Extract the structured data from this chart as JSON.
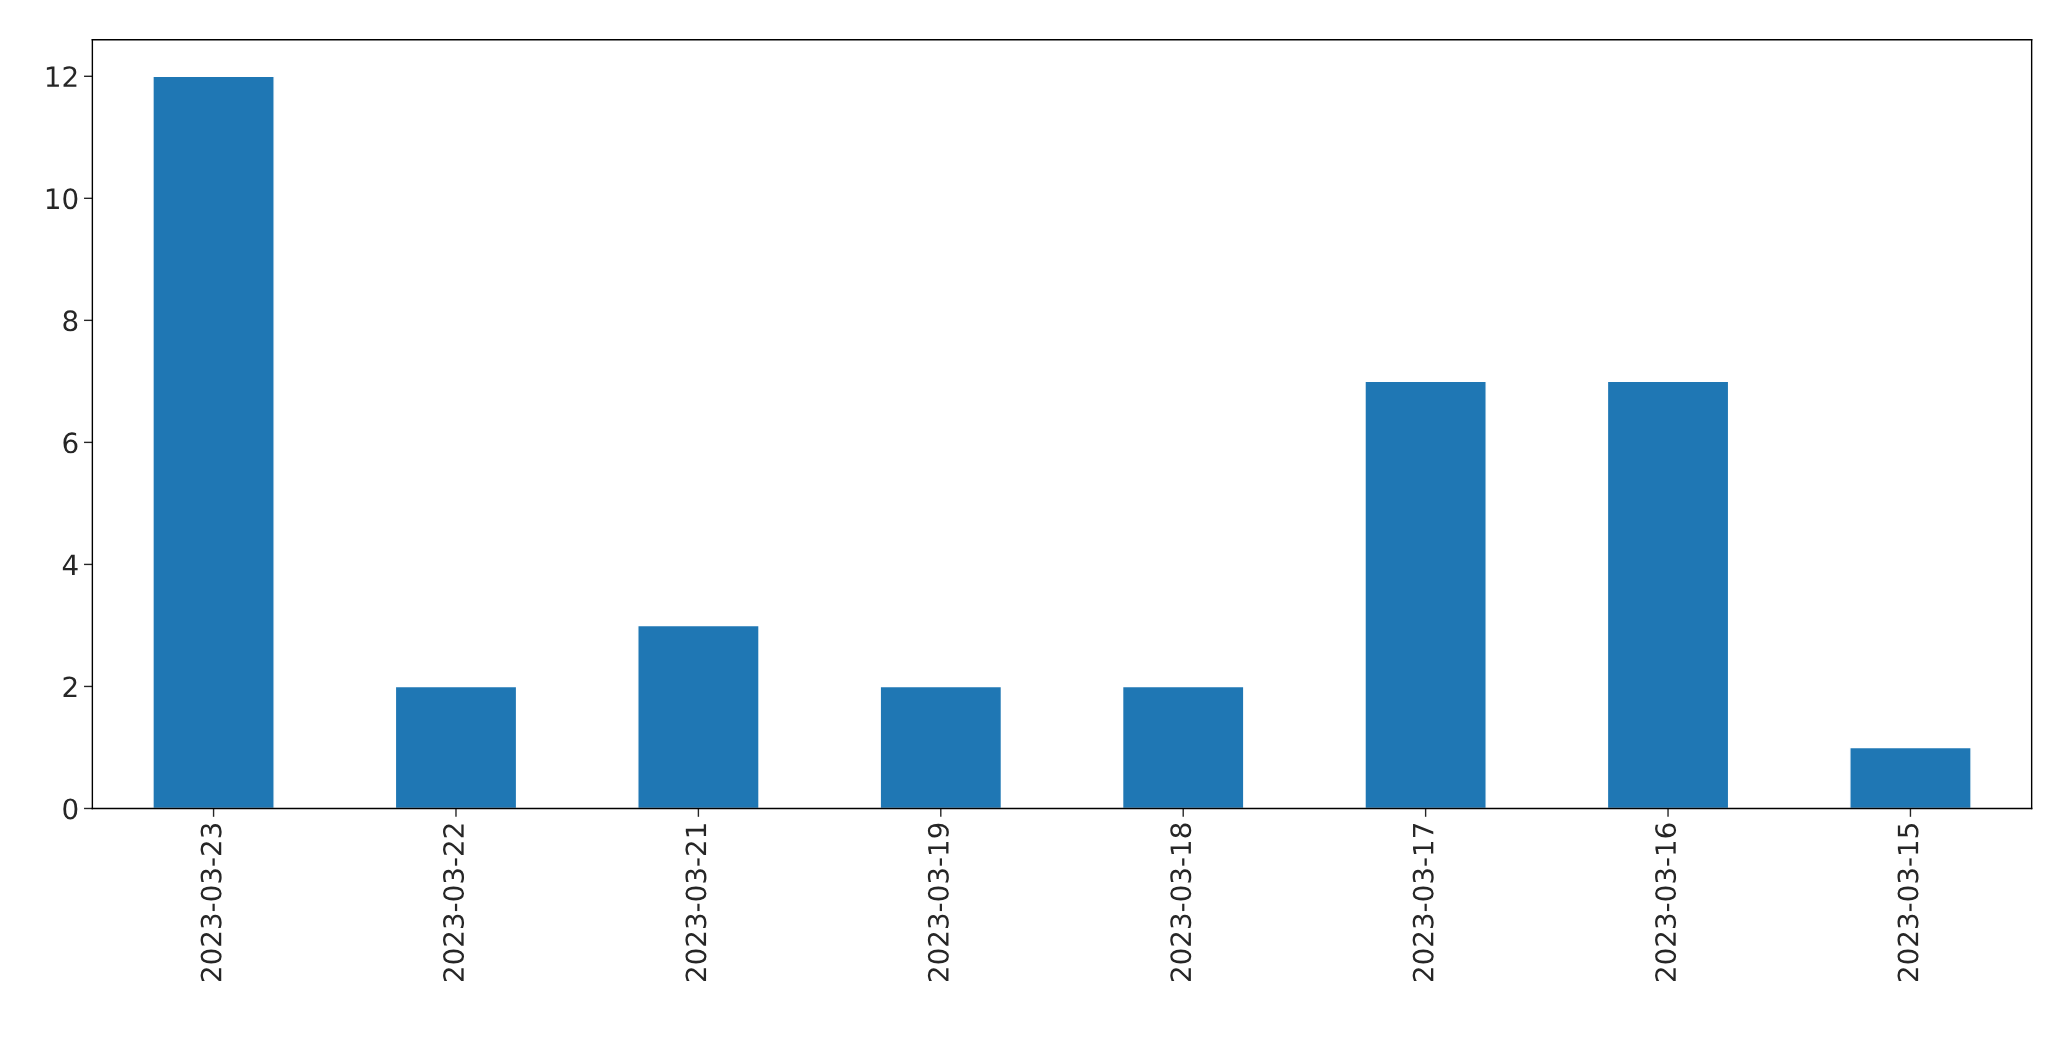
{
  "chart_data": {
    "type": "bar",
    "categories": [
      "2023-03-23",
      "2023-03-22",
      "2023-03-21",
      "2023-03-19",
      "2023-03-18",
      "2023-03-17",
      "2023-03-16",
      "2023-03-15"
    ],
    "values": [
      12,
      2,
      3,
      2,
      2,
      7,
      7,
      1
    ],
    "color": "#1f77b4",
    "ylim": [
      0,
      12.6
    ],
    "yticks": [
      0,
      2,
      4,
      6,
      8,
      10,
      12
    ]
  }
}
